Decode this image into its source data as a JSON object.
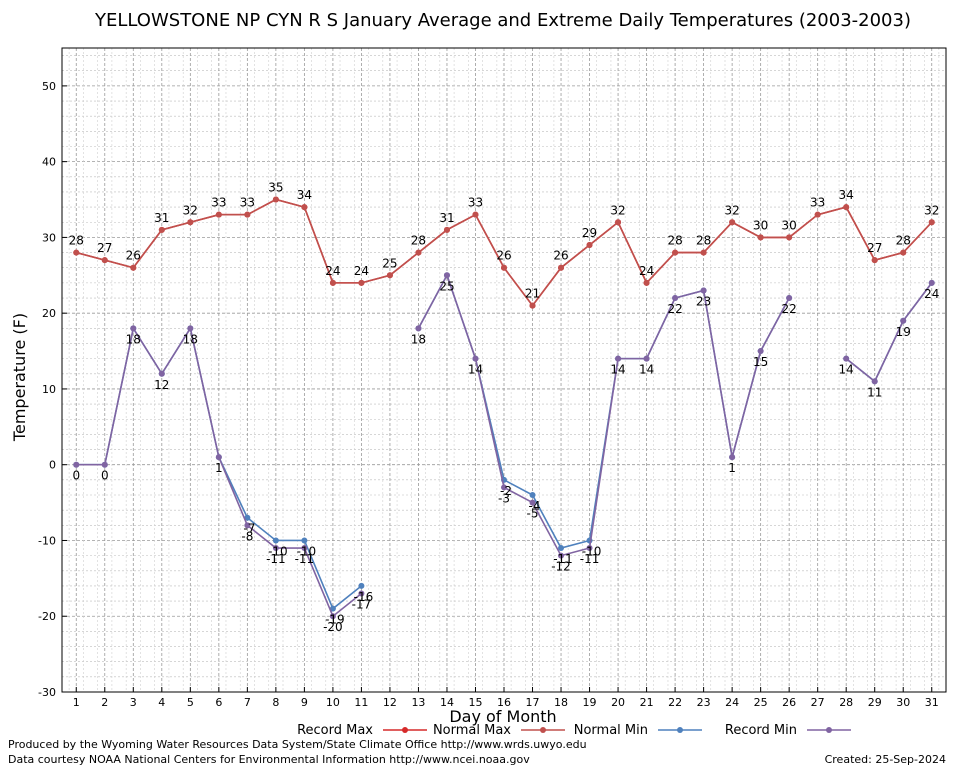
{
  "chart_data": {
    "type": "line",
    "title": "YELLOWSTONE NP CYN R S January Average and Extreme Daily Temperatures (2003-2003)",
    "xlabel": "Day of Month",
    "ylabel": "Temperature (F)",
    "ylim": [
      -30,
      55
    ],
    "xlim": [
      0.5,
      31.5
    ],
    "y_ticks": [
      -30,
      -20,
      -10,
      0,
      10,
      20,
      30,
      40,
      50
    ],
    "grid": true,
    "legend_position": "bottom",
    "x": [
      1,
      2,
      3,
      4,
      5,
      6,
      7,
      8,
      9,
      10,
      11,
      12,
      13,
      14,
      15,
      16,
      17,
      18,
      19,
      20,
      21,
      22,
      23,
      24,
      25,
      26,
      27,
      28,
      29,
      30,
      31
    ],
    "series": [
      {
        "name": "Record Max",
        "color": "#d62a2a",
        "values": [
          28,
          27,
          26,
          31,
          32,
          33,
          33,
          35,
          34,
          24,
          24,
          25,
          28,
          31,
          33,
          26,
          21,
          26,
          29,
          32,
          24,
          28,
          28,
          32,
          30,
          30,
          33,
          34,
          27,
          28,
          32
        ],
        "show_labels": false
      },
      {
        "name": "Normal Max",
        "color": "#c0504d",
        "values": [
          28,
          27,
          26,
          31,
          32,
          33,
          33,
          35,
          34,
          24,
          24,
          25,
          28,
          31,
          33,
          26,
          21,
          26,
          29,
          32,
          24,
          28,
          28,
          32,
          30,
          30,
          33,
          34,
          27,
          28,
          32
        ],
        "show_labels": true,
        "label_side": "above"
      },
      {
        "name": "Normal Min",
        "color": "#4f81bd",
        "values": [
          0,
          0,
          18,
          12,
          18,
          1,
          -7,
          -10,
          -10,
          -19,
          -16,
          null,
          18,
          25,
          14,
          -2,
          -4,
          -11,
          -10,
          14,
          14,
          22,
          23,
          1,
          15,
          22,
          null,
          14,
          11,
          19,
          24
        ],
        "show_labels": true,
        "label_side": "below-partial"
      },
      {
        "name": "Record Min",
        "color": "#8064a2",
        "values": [
          0,
          0,
          18,
          12,
          18,
          1,
          -8,
          -11,
          -11,
          -20,
          -17,
          null,
          18,
          25,
          14,
          -3,
          -5,
          -12,
          -11,
          14,
          14,
          22,
          23,
          1,
          15,
          22,
          null,
          14,
          11,
          19,
          24
        ],
        "show_labels": true,
        "label_side": "below"
      }
    ]
  },
  "footer": {
    "line1": "Produced by the Wyoming Water Resources Data System/State Climate Office http://www.wrds.uwyo.edu",
    "line2": "Data courtesy NOAA National Centers for Environmental Information http://www.ncei.noaa.gov",
    "created": "Created:  25-Sep-2024"
  }
}
